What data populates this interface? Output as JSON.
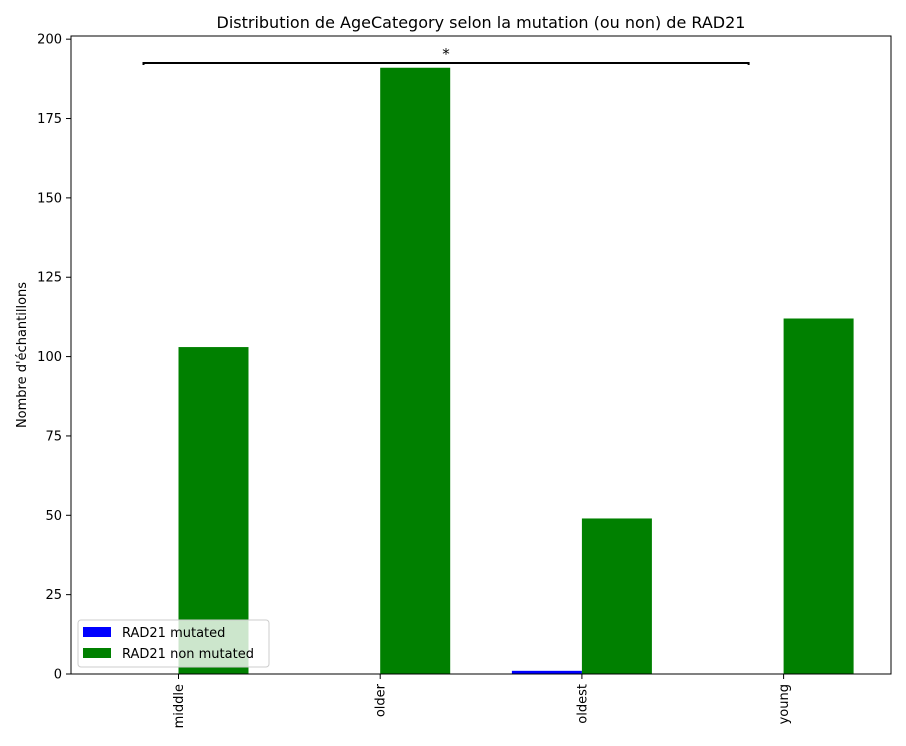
{
  "chart_data": {
    "type": "bar",
    "title": "Distribution de AgeCategory selon la mutation (ou non) de RAD21",
    "xlabel": "",
    "ylabel": "Nombre d'échantillons",
    "categories": [
      "middle",
      "older",
      "oldest",
      "young"
    ],
    "series": [
      {
        "name": "RAD21 mutated",
        "color": "#0000ff",
        "values": [
          0,
          0,
          1,
          0
        ]
      },
      {
        "name": "RAD21 non mutated",
        "color": "#008000",
        "values": [
          103,
          191,
          49,
          112
        ]
      }
    ],
    "ylim": [
      0,
      201
    ],
    "yticks": [
      0,
      25,
      50,
      75,
      100,
      125,
      150,
      175,
      200
    ],
    "grid": false,
    "legend_position": "lower-left",
    "annotation": {
      "text": "*",
      "y": 192.5
    }
  }
}
